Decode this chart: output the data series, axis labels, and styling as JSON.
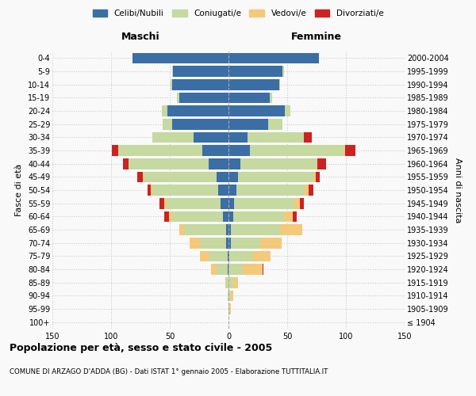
{
  "age_groups": [
    "100+",
    "95-99",
    "90-94",
    "85-89",
    "80-84",
    "75-79",
    "70-74",
    "65-69",
    "60-64",
    "55-59",
    "50-54",
    "45-49",
    "40-44",
    "35-39",
    "30-34",
    "25-29",
    "20-24",
    "15-19",
    "10-14",
    "5-9",
    "0-4"
  ],
  "birth_years": [
    "≤ 1904",
    "1905-1909",
    "1910-1914",
    "1915-1919",
    "1920-1924",
    "1925-1929",
    "1930-1934",
    "1935-1939",
    "1940-1944",
    "1945-1949",
    "1950-1954",
    "1955-1959",
    "1960-1964",
    "1965-1969",
    "1970-1974",
    "1975-1979",
    "1980-1984",
    "1985-1989",
    "1990-1994",
    "1995-1999",
    "2000-2004"
  ],
  "colors": {
    "celibe": "#3a6ea5",
    "coniugato": "#c5d9a0",
    "vedovo": "#f5c97a",
    "divorziato": "#cc2222"
  },
  "maschi": {
    "celibe": [
      0,
      0,
      0,
      0,
      1,
      1,
      2,
      2,
      5,
      7,
      9,
      10,
      17,
      22,
      30,
      48,
      52,
      42,
      48,
      47,
      82
    ],
    "coniugato": [
      0,
      0,
      1,
      2,
      9,
      16,
      22,
      36,
      43,
      46,
      56,
      62,
      68,
      72,
      35,
      8,
      5,
      2,
      1,
      1,
      0
    ],
    "vedovo": [
      0,
      0,
      0,
      1,
      5,
      7,
      9,
      4,
      3,
      2,
      1,
      1,
      0,
      0,
      0,
      0,
      0,
      0,
      0,
      0,
      0
    ],
    "divorziato": [
      0,
      0,
      0,
      0,
      0,
      0,
      0,
      0,
      4,
      4,
      3,
      5,
      5,
      5,
      0,
      0,
      0,
      0,
      0,
      0,
      0
    ]
  },
  "femmine": {
    "nubile": [
      0,
      0,
      0,
      0,
      0,
      1,
      2,
      2,
      4,
      5,
      7,
      8,
      10,
      18,
      16,
      34,
      48,
      35,
      43,
      46,
      77
    ],
    "coniugata": [
      0,
      1,
      2,
      4,
      12,
      20,
      25,
      42,
      43,
      51,
      58,
      64,
      65,
      80,
      48,
      12,
      5,
      2,
      1,
      1,
      0
    ],
    "vedova": [
      0,
      1,
      2,
      4,
      17,
      15,
      18,
      19,
      8,
      5,
      3,
      2,
      1,
      1,
      0,
      0,
      0,
      0,
      0,
      0,
      0
    ],
    "divorziata": [
      0,
      0,
      0,
      0,
      1,
      0,
      0,
      0,
      3,
      3,
      4,
      4,
      7,
      9,
      7,
      0,
      0,
      0,
      0,
      0,
      0
    ]
  },
  "xlim": 150,
  "title": "Popolazione per età, sesso e stato civile - 2005",
  "subtitle": "COMUNE DI ARZAGO D'ADDA (BG) - Dati ISTAT 1° gennaio 2005 - Elaborazione TUTTITALIA.IT",
  "ylabel_left": "Fasce di età",
  "ylabel_right": "Anni di nascita",
  "xlabel_maschi": "Maschi",
  "xlabel_femmine": "Femmine",
  "bg_color": "#f9f9f9",
  "grid_color": "#cccccc",
  "legend_labels": [
    "Celibi/Nubili",
    "Coniugati/e",
    "Vedovi/e",
    "Divorziati/e"
  ]
}
